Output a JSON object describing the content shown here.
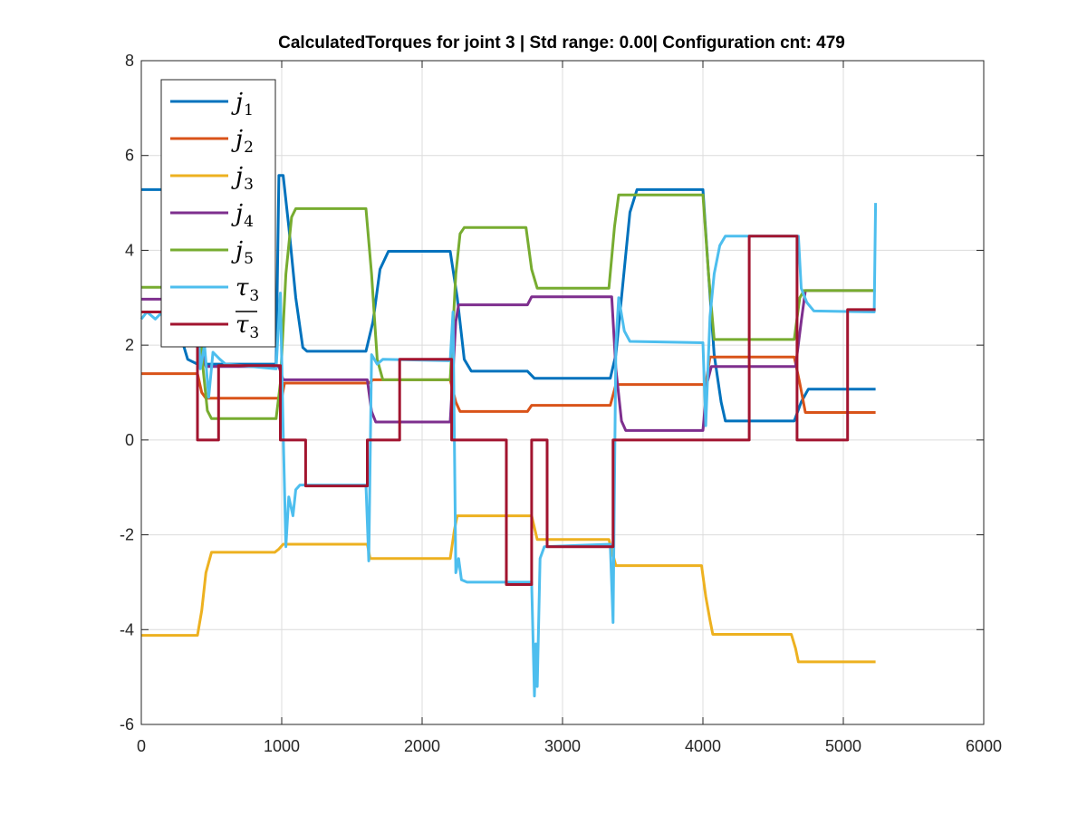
{
  "chart_data": {
    "type": "line",
    "title": "CalculatedTorques for joint 3 | Std range: 0.00| Configuration cnt: 479",
    "xlabel": "",
    "ylabel": "",
    "xlim": [
      0,
      6000
    ],
    "ylim": [
      -6,
      8
    ],
    "xticks": [
      0,
      1000,
      2000,
      3000,
      4000,
      5000,
      6000
    ],
    "yticks": [
      -6,
      -4,
      -2,
      0,
      2,
      4,
      6,
      8
    ],
    "xtick_labels": [
      "0",
      "1000",
      "2000",
      "3000",
      "4000",
      "5000",
      "6000"
    ],
    "ytick_labels": [
      "-6",
      "-4",
      "-2",
      "0",
      "2",
      "4",
      "6",
      "8"
    ],
    "grid": true,
    "legend_position": "top-left",
    "series": [
      {
        "name": "j1",
        "label_base": "j",
        "label_sub": "1",
        "label_overline": false,
        "color": "#0072BD",
        "step": false,
        "points": [
          [
            0,
            5.28
          ],
          [
            150,
            5.28
          ],
          [
            170,
            5.0
          ],
          [
            210,
            4.0
          ],
          [
            240,
            3.3
          ],
          [
            270,
            2.3
          ],
          [
            300,
            2.0
          ],
          [
            330,
            1.7
          ],
          [
            400,
            1.6
          ],
          [
            960,
            1.6
          ],
          [
            980,
            5.58
          ],
          [
            1010,
            5.58
          ],
          [
            1050,
            4.5
          ],
          [
            1100,
            3.0
          ],
          [
            1150,
            1.95
          ],
          [
            1180,
            1.87
          ],
          [
            1600,
            1.87
          ],
          [
            1650,
            2.5
          ],
          [
            1700,
            3.6
          ],
          [
            1760,
            3.98
          ],
          [
            2200,
            3.98
          ],
          [
            2250,
            3.0
          ],
          [
            2300,
            1.7
          ],
          [
            2350,
            1.45
          ],
          [
            2750,
            1.45
          ],
          [
            2800,
            1.3
          ],
          [
            3340,
            1.3
          ],
          [
            3380,
            1.8
          ],
          [
            3420,
            3.0
          ],
          [
            3480,
            4.8
          ],
          [
            3530,
            5.28
          ],
          [
            4000,
            5.28
          ],
          [
            4040,
            3.5
          ],
          [
            4080,
            1.8
          ],
          [
            4130,
            0.8
          ],
          [
            4160,
            0.4
          ],
          [
            4650,
            0.4
          ],
          [
            4700,
            0.8
          ],
          [
            4750,
            1.07
          ],
          [
            5230,
            1.07
          ]
        ]
      },
      {
        "name": "j2",
        "label_base": "j",
        "label_sub": "2",
        "label_overline": false,
        "color": "#D95319",
        "step": false,
        "points": [
          [
            0,
            1.4
          ],
          [
            400,
            1.4
          ],
          [
            430,
            1.0
          ],
          [
            460,
            0.88
          ],
          [
            1000,
            0.88
          ],
          [
            1020,
            1.2
          ],
          [
            1620,
            1.2
          ],
          [
            1650,
            1.27
          ],
          [
            2200,
            1.27
          ],
          [
            2240,
            0.8
          ],
          [
            2270,
            0.6
          ],
          [
            2750,
            0.6
          ],
          [
            2780,
            0.73
          ],
          [
            3340,
            0.73
          ],
          [
            3380,
            1.17
          ],
          [
            4020,
            1.17
          ],
          [
            4050,
            1.75
          ],
          [
            4650,
            1.75
          ],
          [
            4690,
            1.2
          ],
          [
            4730,
            0.58
          ],
          [
            5230,
            0.58
          ]
        ]
      },
      {
        "name": "j3",
        "label_base": "j",
        "label_sub": "3",
        "label_overline": false,
        "color": "#EDB120",
        "step": false,
        "points": [
          [
            0,
            -4.12
          ],
          [
            400,
            -4.12
          ],
          [
            430,
            -3.6
          ],
          [
            460,
            -2.8
          ],
          [
            500,
            -2.37
          ],
          [
            950,
            -2.37
          ],
          [
            980,
            -2.3
          ],
          [
            1010,
            -2.2
          ],
          [
            1610,
            -2.2
          ],
          [
            1630,
            -2.5
          ],
          [
            2200,
            -2.5
          ],
          [
            2230,
            -1.9
          ],
          [
            2250,
            -1.6
          ],
          [
            2780,
            -1.6
          ],
          [
            2820,
            -2.1
          ],
          [
            3330,
            -2.1
          ],
          [
            3380,
            -2.65
          ],
          [
            3990,
            -2.65
          ],
          [
            4020,
            -3.3
          ],
          [
            4050,
            -3.8
          ],
          [
            4070,
            -4.1
          ],
          [
            4630,
            -4.1
          ],
          [
            4660,
            -4.4
          ],
          [
            4680,
            -4.68
          ],
          [
            5230,
            -4.68
          ]
        ]
      },
      {
        "name": "j4",
        "label_base": "j",
        "label_sub": "4",
        "label_overline": false,
        "color": "#7E2F8E",
        "step": false,
        "points": [
          [
            0,
            2.97
          ],
          [
            400,
            2.97
          ],
          [
            430,
            2.1
          ],
          [
            460,
            1.55
          ],
          [
            980,
            1.55
          ],
          [
            1010,
            1.27
          ],
          [
            1610,
            1.27
          ],
          [
            1640,
            0.6
          ],
          [
            1670,
            0.38
          ],
          [
            2200,
            0.38
          ],
          [
            2240,
            2.5
          ],
          [
            2260,
            2.85
          ],
          [
            2750,
            2.85
          ],
          [
            2780,
            3.02
          ],
          [
            3350,
            3.02
          ],
          [
            3380,
            1.5
          ],
          [
            3420,
            0.4
          ],
          [
            3450,
            0.2
          ],
          [
            4000,
            0.2
          ],
          [
            4030,
            1.2
          ],
          [
            4060,
            1.55
          ],
          [
            4660,
            1.55
          ],
          [
            4700,
            2.5
          ],
          [
            4730,
            3.15
          ],
          [
            5230,
            3.15
          ]
        ]
      },
      {
        "name": "j5",
        "label_base": "j",
        "label_sub": "5",
        "label_overline": false,
        "color": "#77AC30",
        "step": false,
        "points": [
          [
            0,
            3.22
          ],
          [
            400,
            3.22
          ],
          [
            440,
            1.5
          ],
          [
            470,
            0.62
          ],
          [
            500,
            0.45
          ],
          [
            960,
            0.45
          ],
          [
            990,
            1.2
          ],
          [
            1030,
            3.5
          ],
          [
            1070,
            4.7
          ],
          [
            1100,
            4.88
          ],
          [
            1600,
            4.88
          ],
          [
            1640,
            3.5
          ],
          [
            1680,
            1.7
          ],
          [
            1720,
            1.27
          ],
          [
            2200,
            1.27
          ],
          [
            2240,
            3.5
          ],
          [
            2270,
            4.35
          ],
          [
            2300,
            4.48
          ],
          [
            2740,
            4.48
          ],
          [
            2780,
            3.6
          ],
          [
            2820,
            3.2
          ],
          [
            3330,
            3.2
          ],
          [
            3370,
            4.5
          ],
          [
            3400,
            5.17
          ],
          [
            4000,
            5.17
          ],
          [
            4040,
            3.5
          ],
          [
            4080,
            2.12
          ],
          [
            4650,
            2.12
          ],
          [
            4690,
            3.0
          ],
          [
            4720,
            3.15
          ],
          [
            5230,
            3.15
          ]
        ]
      },
      {
        "name": "tau3",
        "label_base": "τ",
        "label_sub": "3",
        "label_overline": false,
        "color": "#4DBEEE",
        "step": false,
        "points": [
          [
            0,
            2.55
          ],
          [
            40,
            2.7
          ],
          [
            100,
            2.55
          ],
          [
            150,
            2.7
          ],
          [
            400,
            2.65
          ],
          [
            420,
            1.5
          ],
          [
            450,
            2.0
          ],
          [
            480,
            0.9
          ],
          [
            510,
            1.85
          ],
          [
            560,
            1.7
          ],
          [
            600,
            1.6
          ],
          [
            960,
            1.5
          ],
          [
            990,
            3.1
          ],
          [
            1010,
            0.2
          ],
          [
            1030,
            -2.25
          ],
          [
            1050,
            -1.2
          ],
          [
            1080,
            -1.6
          ],
          [
            1100,
            -1.05
          ],
          [
            1130,
            -0.95
          ],
          [
            1600,
            -0.95
          ],
          [
            1620,
            -2.55
          ],
          [
            1640,
            1.8
          ],
          [
            1680,
            1.6
          ],
          [
            1720,
            1.7
          ],
          [
            2200,
            1.67
          ],
          [
            2220,
            2.7
          ],
          [
            2240,
            -2.8
          ],
          [
            2260,
            -2.5
          ],
          [
            2280,
            -2.95
          ],
          [
            2320,
            -3.0
          ],
          [
            2780,
            -3.0
          ],
          [
            2800,
            -5.4
          ],
          [
            2810,
            -4.3
          ],
          [
            2820,
            -5.2
          ],
          [
            2840,
            -2.5
          ],
          [
            2870,
            -2.25
          ],
          [
            3340,
            -2.2
          ],
          [
            3360,
            -3.85
          ],
          [
            3380,
            2.0
          ],
          [
            3400,
            3.0
          ],
          [
            3440,
            2.3
          ],
          [
            3480,
            2.08
          ],
          [
            4000,
            2.05
          ],
          [
            4020,
            0.3
          ],
          [
            4050,
            2.6
          ],
          [
            4080,
            3.5
          ],
          [
            4120,
            4.1
          ],
          [
            4160,
            4.3
          ],
          [
            4680,
            4.3
          ],
          [
            4700,
            3.2
          ],
          [
            4740,
            2.9
          ],
          [
            4790,
            2.72
          ],
          [
            5220,
            2.7
          ],
          [
            5230,
            5.0
          ]
        ]
      },
      {
        "name": "tau3-bar",
        "label_base": "τ",
        "label_sub": "3",
        "label_overline": true,
        "color": "#A2142F",
        "step": true,
        "points": [
          [
            0,
            2.7
          ],
          [
            400,
            2.7
          ],
          [
            400,
            0.0
          ],
          [
            550,
            0.0
          ],
          [
            550,
            1.57
          ],
          [
            990,
            1.57
          ],
          [
            990,
            0.0
          ],
          [
            1170,
            0.0
          ],
          [
            1170,
            -0.97
          ],
          [
            1610,
            -0.97
          ],
          [
            1610,
            0.0
          ],
          [
            1840,
            0.0
          ],
          [
            1840,
            1.7
          ],
          [
            2210,
            1.7
          ],
          [
            2210,
            0.0
          ],
          [
            2600,
            0.0
          ],
          [
            2600,
            -3.05
          ],
          [
            2780,
            -3.05
          ],
          [
            2780,
            0.0
          ],
          [
            2890,
            0.0
          ],
          [
            2890,
            -2.25
          ],
          [
            3360,
            -2.25
          ],
          [
            3360,
            0.0
          ],
          [
            4330,
            0.0
          ],
          [
            4330,
            4.3
          ],
          [
            4670,
            4.3
          ],
          [
            4670,
            0.0
          ],
          [
            5030,
            0.0
          ],
          [
            5030,
            2.75
          ],
          [
            5230,
            2.75
          ]
        ]
      }
    ]
  }
}
